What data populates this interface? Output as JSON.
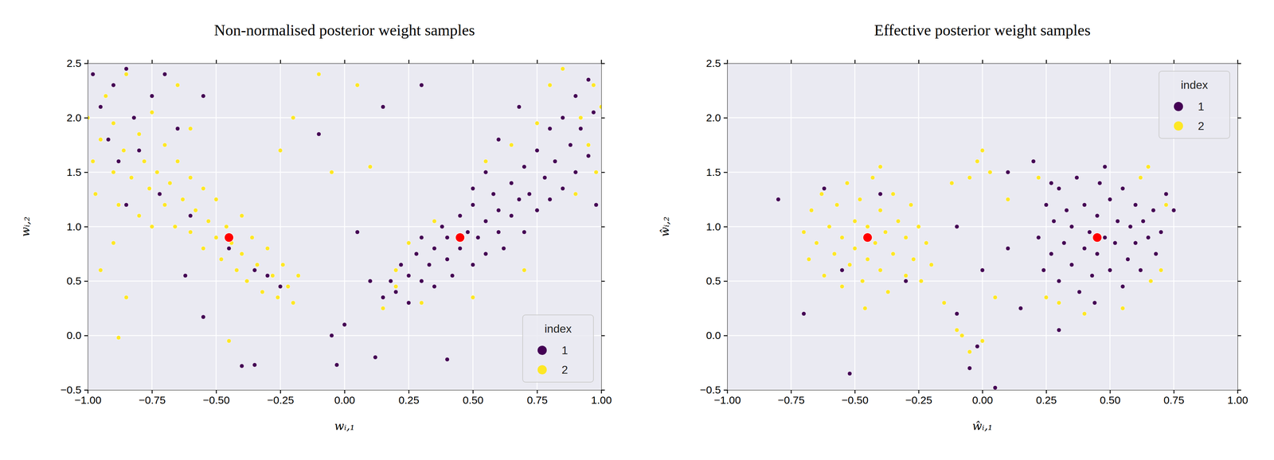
{
  "chart_data": [
    {
      "type": "scatter",
      "title": "Non-normalised posterior weight samples",
      "x_label": "wᵢ,₁",
      "y_label": "wᵢ,₂",
      "xlim": [
        -1,
        1
      ],
      "ylim": [
        -0.5,
        2.5
      ],
      "xticks": [
        {
          "value": -1,
          "label": "−1.00"
        },
        {
          "value": -0.75,
          "label": "−0.75"
        },
        {
          "value": -0.5,
          "label": "−0.50"
        },
        {
          "value": -0.25,
          "label": "−0.25"
        },
        {
          "value": 0,
          "label": "0.00"
        },
        0.25,
        {
          "value": 0.5,
          "label": "0.50"
        },
        0.75,
        {
          "value": 1,
          "label": "1.00"
        }
      ],
      "yticks": [
        {
          "value": -0.5,
          "label": "−0.5"
        },
        {
          "value": 0,
          "label": "0.0"
        },
        0.5,
        {
          "value": 1,
          "label": "1.0"
        },
        1.5,
        {
          "value": 2,
          "label": "2.0"
        },
        2.5
      ],
      "grid": true,
      "legend": "lower right",
      "legend_title": "index",
      "series": [
        {
          "name": "1",
          "color": "#440154",
          "x": [
            0.15,
            0.18,
            0.2,
            0.22,
            0.25,
            0.25,
            0.28,
            0.3,
            0.3,
            0.33,
            0.35,
            0.35,
            0.38,
            0.4,
            0.4,
            0.42,
            0.45,
            0.45,
            0.48,
            0.5,
            0.5,
            0.52,
            0.55,
            0.55,
            0.58,
            0.6,
            0.6,
            0.62,
            0.65,
            0.65,
            0.68,
            0.7,
            0.7,
            0.72,
            0.75,
            0.75,
            0.78,
            0.8,
            0.8,
            0.82,
            0.85,
            0.85,
            0.88,
            0.9,
            0.9,
            0.92,
            0.95,
            0.95,
            0.97,
            0.98,
            0.6,
            0.55,
            0.68,
            0.5,
            -0.98,
            -0.95,
            -0.92,
            -0.9,
            -0.88,
            -0.85,
            -0.82,
            -0.8,
            -0.75,
            -0.72,
            -0.7,
            -0.65,
            -0.6,
            -0.55,
            -0.5,
            -0.45,
            -0.35,
            -0.3,
            -0.25,
            -0.85,
            -0.62,
            -0.55,
            -0.4,
            -0.35,
            -0.05,
            -0.03,
            0.0,
            0.05,
            0.12,
            0.4,
            0.1,
            -0.1,
            0.15,
            0.3
          ],
          "values": [
            0.35,
            0.5,
            0.4,
            0.65,
            0.55,
            0.3,
            0.75,
            0.5,
            0.9,
            0.65,
            0.8,
            0.45,
            1.0,
            0.7,
            0.9,
            0.55,
            1.1,
            0.8,
            0.95,
            0.65,
            1.2,
            0.9,
            1.05,
            0.75,
            1.3,
            0.95,
            1.15,
            0.8,
            1.4,
            1.1,
            1.25,
            0.95,
            1.55,
            1.3,
            1.15,
            1.7,
            1.45,
            1.25,
            1.9,
            1.6,
            1.35,
            2.0,
            1.75,
            1.5,
            2.2,
            1.9,
            1.65,
            2.35,
            2.05,
            1.2,
            1.8,
            1.5,
            2.1,
            1.35,
            2.4,
            2.1,
            1.8,
            2.3,
            1.6,
            2.45,
            2.0,
            1.7,
            2.2,
            1.3,
            2.4,
            1.9,
            1.1,
            2.2,
            0.9,
            0.8,
            0.6,
            0.55,
            0.45,
            1.2,
            0.55,
            0.17,
            -0.28,
            -0.27,
            0.0,
            -0.27,
            0.1,
            0.95,
            -0.2,
            -0.22,
            0.5,
            1.85,
            2.1,
            2.3
          ]
        },
        {
          "name": "2",
          "color": "#fde725",
          "x": [
            -1.0,
            -0.98,
            -0.97,
            -0.95,
            -0.93,
            -0.9,
            -0.9,
            -0.88,
            -0.86,
            -0.85,
            -0.83,
            -0.8,
            -0.8,
            -0.78,
            -0.76,
            -0.75,
            -0.73,
            -0.7,
            -0.7,
            -0.68,
            -0.66,
            -0.65,
            -0.63,
            -0.6,
            -0.6,
            -0.58,
            -0.55,
            -0.55,
            -0.53,
            -0.5,
            -0.5,
            -0.48,
            -0.46,
            -0.44,
            -0.42,
            -0.4,
            -0.4,
            -0.38,
            -0.36,
            -0.34,
            -0.32,
            -0.3,
            -0.28,
            -0.26,
            -0.24,
            -0.22,
            -0.2,
            -0.18,
            -0.6,
            -0.65,
            -0.75,
            -0.9,
            -0.95,
            -0.85,
            0.15,
            0.2,
            0.25,
            0.3,
            0.35,
            0.5,
            0.7,
            0.75,
            0.8,
            0.85,
            0.9,
            0.92,
            0.95,
            0.97,
            0.98,
            1.0,
            0.65,
            0.55,
            0.2,
            -0.88,
            -0.45,
            -0.2,
            -0.1,
            0.05,
            -0.25,
            0.1,
            -0.05
          ],
          "values": [
            2.0,
            1.6,
            1.3,
            1.8,
            2.2,
            1.5,
            1.95,
            1.2,
            1.7,
            2.4,
            1.45,
            1.85,
            1.1,
            1.6,
            1.35,
            2.05,
            1.5,
            1.2,
            1.75,
            1.4,
            1.0,
            1.6,
            1.25,
            1.45,
            0.95,
            1.15,
            1.35,
            0.8,
            1.05,
            0.9,
            1.25,
            0.7,
            1.0,
            0.85,
            0.6,
            1.1,
            0.75,
            0.5,
            0.9,
            0.65,
            0.4,
            0.8,
            0.55,
            0.35,
            0.65,
            0.45,
            0.3,
            0.55,
            1.9,
            2.3,
            1.0,
            0.85,
            0.6,
            0.35,
            0.25,
            0.6,
            0.85,
            0.3,
            1.05,
            0.35,
            0.6,
            1.95,
            2.3,
            2.45,
            1.3,
            2.0,
            1.75,
            2.3,
            1.5,
            2.1,
            1.75,
            1.6,
            0.45,
            -0.02,
            -0.05,
            2.0,
            2.4,
            2.3,
            1.7,
            1.55,
            1.5
          ]
        },
        {
          "color": "red",
          "x": [
            -0.45,
            0.45
          ],
          "values": [
            0.9,
            0.9
          ]
        }
      ]
    },
    {
      "type": "scatter",
      "title": "Effective posterior weight samples",
      "x_label": "ŵᵢ,₁",
      "y_label": "ŵᵢ,₂",
      "xlim": [
        -1,
        1
      ],
      "ylim": [
        -0.5,
        2.5
      ],
      "xticks": [
        {
          "value": -1,
          "label": "−1.00"
        },
        {
          "value": -0.75,
          "label": "−0.75"
        },
        {
          "value": -0.5,
          "label": "−0.50"
        },
        {
          "value": -0.25,
          "label": "−0.25"
        },
        {
          "value": 0,
          "label": "0.00"
        },
        0.25,
        {
          "value": 0.5,
          "label": "0.50"
        },
        0.75,
        {
          "value": 1,
          "label": "1.00"
        }
      ],
      "yticks": [
        {
          "value": -0.5,
          "label": "−0.5"
        },
        {
          "value": 0,
          "label": "0.0"
        },
        0.5,
        {
          "value": 1,
          "label": "1.0"
        },
        1.5,
        {
          "value": 2,
          "label": "2.0"
        },
        2.5
      ],
      "grid": true,
      "legend": "upper right",
      "legend_title": "index",
      "series": [
        {
          "name": "1",
          "color": "#440154",
          "x": [
            0.22,
            0.24,
            0.25,
            0.27,
            0.28,
            0.3,
            0.3,
            0.32,
            0.33,
            0.35,
            0.35,
            0.37,
            0.38,
            0.4,
            0.4,
            0.42,
            0.43,
            0.45,
            0.45,
            0.46,
            0.48,
            0.5,
            0.5,
            0.52,
            0.53,
            0.55,
            0.55,
            0.57,
            0.58,
            0.6,
            0.6,
            0.62,
            0.63,
            0.65,
            0.67,
            0.68,
            0.7,
            0.44,
            0.48,
            0.27,
            -0.62,
            -0.55,
            -0.8,
            -0.7,
            -0.52,
            -0.4,
            -0.3,
            -0.05,
            0.05,
            -0.1,
            0.0,
            0.1,
            0.15,
            0.2,
            -0.02,
            0.3,
            0.72,
            0.75,
            0.1,
            -0.1
          ],
          "values": [
            0.9,
            0.6,
            1.2,
            0.75,
            1.05,
            0.5,
            1.35,
            0.85,
            1.15,
            0.65,
            1.0,
            1.45,
            0.4,
            0.8,
            1.2,
            0.95,
            0.55,
            1.1,
            0.75,
            1.4,
            0.9,
            0.6,
            1.25,
            0.85,
            1.05,
            0.45,
            1.35,
            0.7,
            1.0,
            0.85,
            1.2,
            0.6,
            1.05,
            0.9,
            1.15,
            0.75,
            0.95,
            0.3,
            1.55,
            1.4,
            1.35,
            0.6,
            1.25,
            0.2,
            -0.35,
            1.3,
            0.5,
            -0.3,
            -0.48,
            0.2,
            0.6,
            1.5,
            0.25,
            1.6,
            -0.1,
            0.05,
            1.3,
            1.15,
            0.8,
            1.0
          ]
        },
        {
          "name": "2",
          "color": "#fde725",
          "x": [
            -0.7,
            -0.68,
            -0.67,
            -0.65,
            -0.63,
            -0.62,
            -0.6,
            -0.58,
            -0.57,
            -0.55,
            -0.55,
            -0.53,
            -0.52,
            -0.5,
            -0.5,
            -0.48,
            -0.47,
            -0.45,
            -0.45,
            -0.43,
            -0.42,
            -0.4,
            -0.4,
            -0.38,
            -0.37,
            -0.35,
            -0.35,
            -0.33,
            -0.3,
            -0.3,
            -0.28,
            -0.27,
            -0.25,
            -0.24,
            -0.22,
            -0.2,
            -0.46,
            -0.4,
            0.22,
            0.25,
            0.3,
            0.55,
            0.62,
            0.66,
            0.7,
            0.72,
            0.65,
            0.4,
            0.0,
            -0.02,
            0.03,
            -0.05,
            -0.08,
            -0.1,
            -0.05,
            0.0,
            -0.12,
            0.05,
            0.1,
            -0.15
          ],
          "values": [
            0.95,
            0.7,
            1.15,
            0.85,
            1.3,
            0.55,
            1.0,
            0.75,
            1.2,
            0.45,
            0.9,
            1.4,
            0.65,
            1.05,
            0.8,
            1.25,
            0.5,
            1.0,
            0.7,
            1.45,
            0.85,
            0.6,
            1.15,
            0.95,
            0.4,
            1.3,
            0.75,
            1.05,
            0.55,
            0.9,
            1.2,
            0.7,
            1.0,
            0.5,
            0.85,
            0.65,
            0.25,
            1.55,
            1.45,
            0.35,
            0.3,
            0.25,
            1.45,
            0.5,
            0.6,
            1.2,
            1.55,
            0.2,
            1.7,
            1.6,
            1.5,
            1.45,
            0.0,
            0.05,
            -0.15,
            -0.05,
            1.4,
            0.35,
            1.25,
            0.3
          ]
        },
        {
          "color": "red",
          "x": [
            -0.45,
            0.45
          ],
          "values": [
            0.9,
            0.9
          ]
        }
      ]
    }
  ]
}
